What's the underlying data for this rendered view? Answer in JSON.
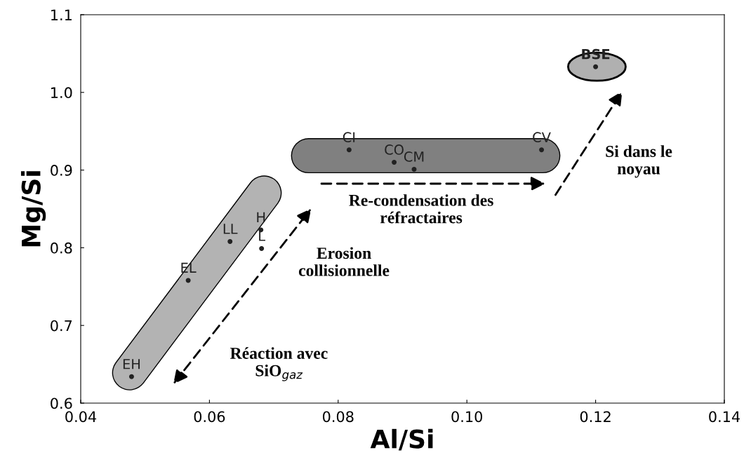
{
  "chart_data": {
    "type": "scatter",
    "xlabel": "Al/Si",
    "ylabel": "Mg/Si",
    "xlim": [
      0.04,
      0.14
    ],
    "ylim": [
      0.6,
      1.1
    ],
    "xticks": [
      {
        "value": 0.04,
        "label": "0.04"
      },
      {
        "value": 0.06,
        "label": "0.06"
      },
      {
        "value": 0.08,
        "label": "0.08"
      },
      {
        "value": 0.1,
        "label": "0.10"
      },
      {
        "value": 0.12,
        "label": "0.12"
      },
      {
        "value": 0.14,
        "label": "0.14"
      }
    ],
    "yticks": [
      {
        "value": 0.6,
        "label": "0.6"
      },
      {
        "value": 0.7,
        "label": "0.7"
      },
      {
        "value": 0.8,
        "label": "0.8"
      },
      {
        "value": 0.9,
        "label": "0.9"
      },
      {
        "value": 1.0,
        "label": "1.0"
      },
      {
        "value": 1.1,
        "label": "1.1"
      }
    ],
    "grid": false,
    "marker": "circle",
    "x": [
      0.0479,
      0.0567,
      0.0632,
      0.068,
      0.0681,
      0.0817,
      0.0887,
      0.0918,
      0.1116,
      0.12
    ],
    "values": [
      0.634,
      0.758,
      0.808,
      0.823,
      0.799,
      0.926,
      0.91,
      0.901,
      0.926,
      1.033
    ],
    "value_labels": [
      "EH",
      "EL",
      "LL",
      "H",
      "L",
      "CI",
      "CO",
      "CM",
      "CV",
      "BSE"
    ],
    "annotations": [
      "Réaction avec\nSiO$_{gaz}$",
      "Erosion\ncollisionnelle",
      "Re-condensation des\nréfractaires",
      "Si dans le\nnoyau"
    ]
  }
}
